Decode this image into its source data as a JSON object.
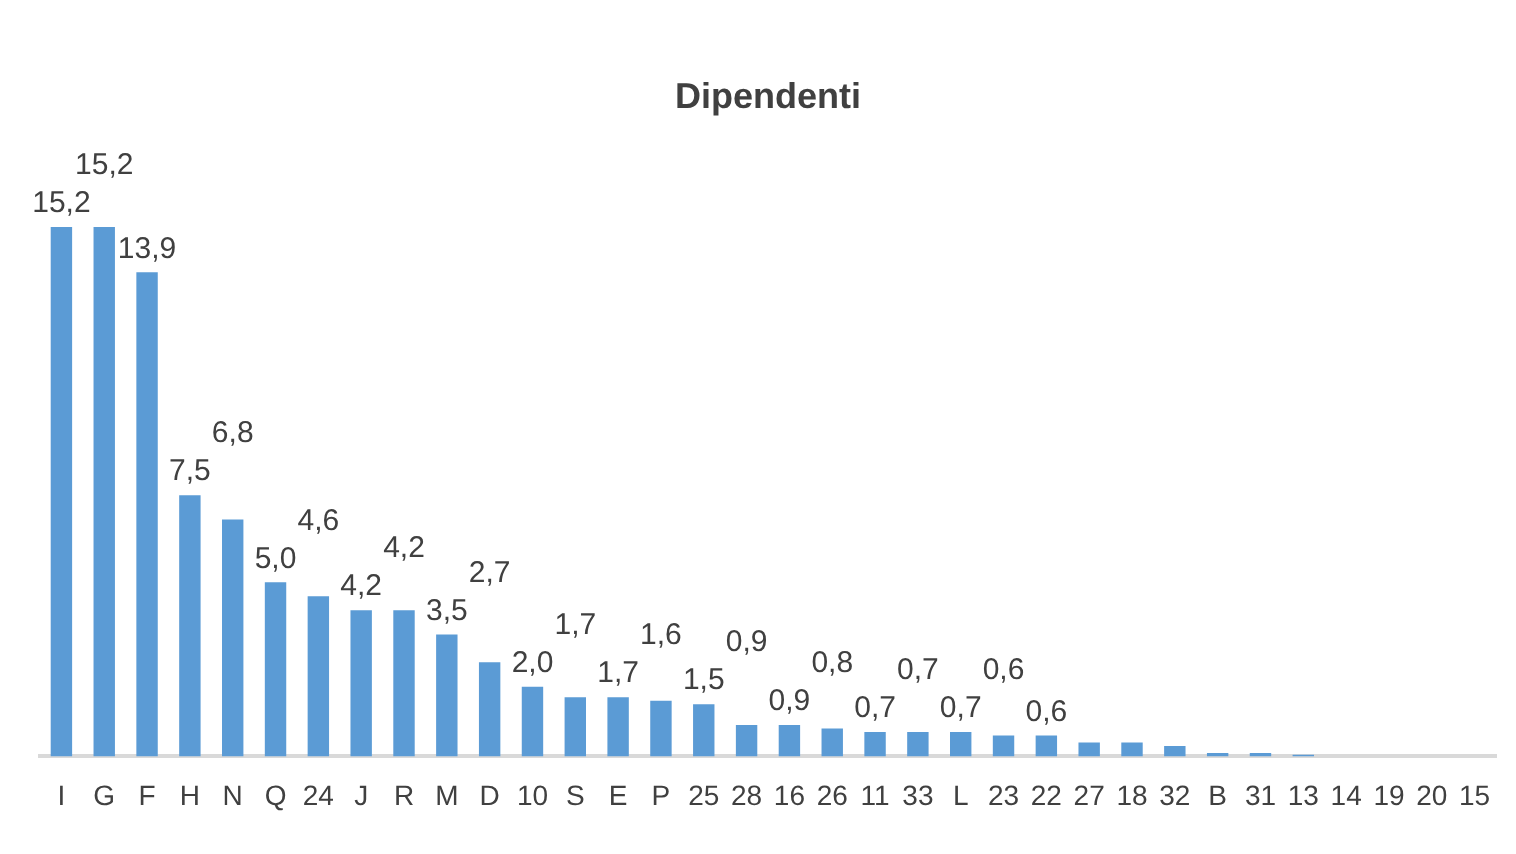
{
  "chart_data": {
    "type": "bar",
    "title": "Dipendenti",
    "categories": [
      "I",
      "G",
      "F",
      "H",
      "N",
      "Q",
      "24",
      "J",
      "R",
      "M",
      "D",
      "10",
      "S",
      "E",
      "P",
      "25",
      "28",
      "16",
      "26",
      "11",
      "33",
      "L",
      "23",
      "22",
      "27",
      "18",
      "32",
      "B",
      "31",
      "13",
      "14",
      "19",
      "20",
      "15"
    ],
    "values": [
      15.2,
      15.2,
      13.9,
      7.5,
      6.8,
      5.0,
      4.6,
      4.2,
      4.2,
      3.5,
      2.7,
      2.0,
      1.7,
      1.7,
      1.6,
      1.5,
      0.9,
      0.9,
      0.8,
      0.7,
      0.7,
      0.7,
      0.6,
      0.6,
      0.4,
      0.4,
      0.3,
      0.1,
      0.1,
      0.05,
      0,
      0,
      0,
      0
    ],
    "value_labels": [
      "15,2",
      "15,2",
      "13,9",
      "7,5",
      "6,8",
      "5,0",
      "4,6",
      "4,2",
      "4,2",
      "3,5",
      "2,7",
      "2,0",
      "1,7",
      "1,7",
      "1,6",
      "1,5",
      "0,9",
      "0,9",
      "0,8",
      "0,7",
      "0,7",
      "0,7",
      "0,6",
      "0,6",
      null,
      null,
      null,
      null,
      null,
      null,
      null,
      null,
      null,
      null
    ],
    "color": "#5b9bd5",
    "grid": false,
    "legend": false
  }
}
